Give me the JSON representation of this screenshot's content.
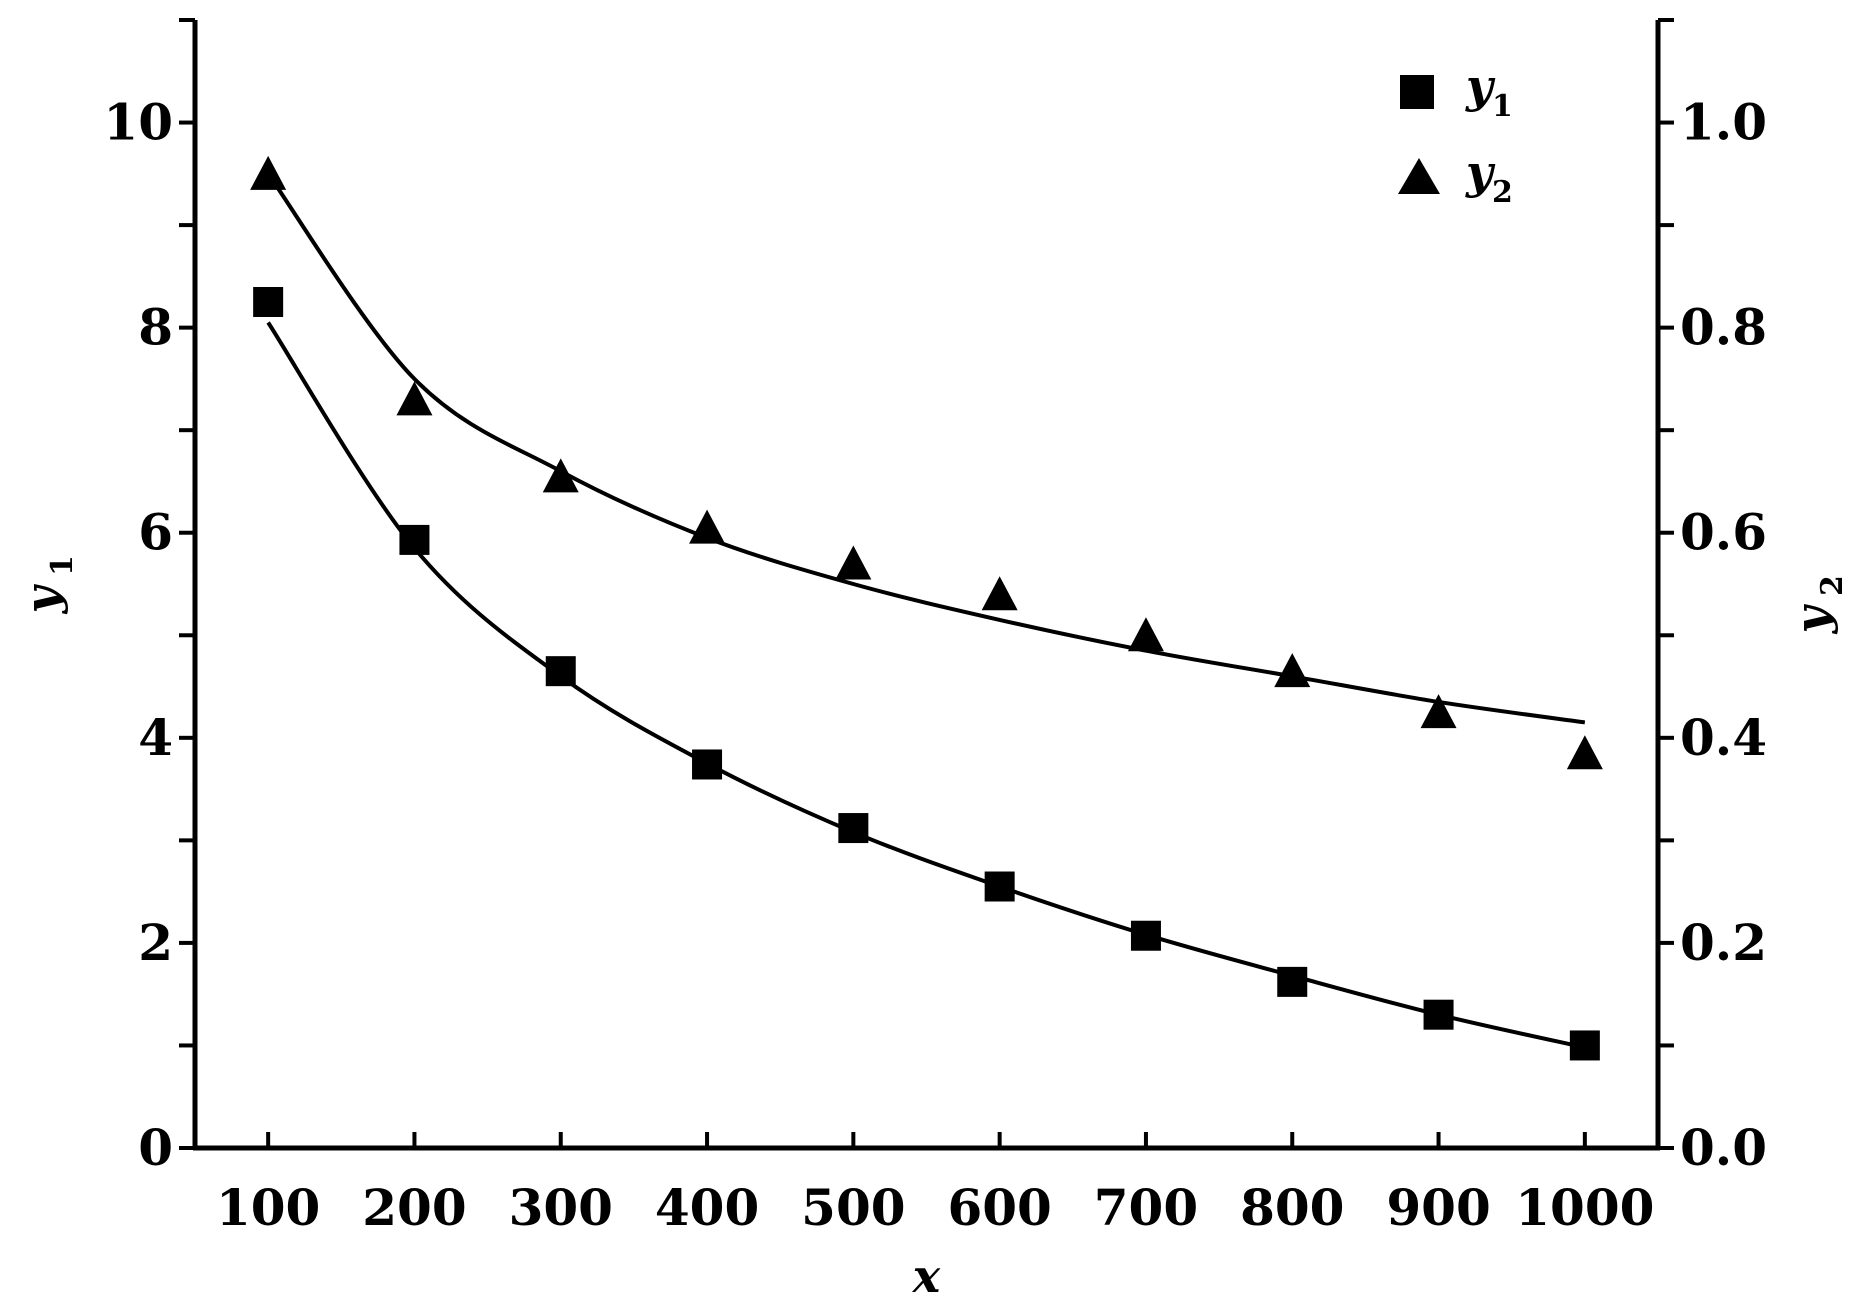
{
  "chart_data": {
    "type": "scatter",
    "x": [
      100,
      200,
      300,
      400,
      500,
      600,
      700,
      800,
      900,
      1000
    ],
    "xlabel": "x",
    "xlim": [
      50,
      1050
    ],
    "xticks": [
      100,
      200,
      300,
      400,
      500,
      600,
      700,
      800,
      900,
      1000
    ],
    "y_left": {
      "label": "y",
      "label_sub": "1",
      "lim": [
        0,
        11
      ],
      "ticks": [
        0,
        2,
        4,
        6,
        8,
        10
      ],
      "tick_labels": [
        "0",
        "2",
        "4",
        "6",
        "8",
        "10"
      ]
    },
    "y_right": {
      "label": "y",
      "label_sub": "2",
      "lim": [
        0,
        1.1
      ],
      "ticks": [
        0.0,
        0.2,
        0.4,
        0.6,
        0.8,
        1.0
      ],
      "tick_labels": [
        "0.0",
        "0.2",
        "0.4",
        "0.6",
        "0.8",
        "1.0"
      ]
    },
    "series": [
      {
        "name": "y1",
        "legend_label": "y",
        "legend_sub": "1",
        "axis": "left",
        "marker": "square",
        "values": [
          8.25,
          5.93,
          4.65,
          3.74,
          3.12,
          2.55,
          2.07,
          1.62,
          1.3,
          1.0
        ],
        "fit": [
          8.05,
          5.85,
          4.6,
          3.75,
          3.08,
          2.55,
          2.08,
          1.68,
          1.3,
          0.98
        ]
      },
      {
        "name": "y2",
        "legend_label": "y",
        "legend_sub": "2",
        "axis": "right",
        "marker": "triangle",
        "values": [
          0.95,
          0.73,
          0.655,
          0.605,
          0.57,
          0.54,
          0.5,
          0.465,
          0.425,
          0.385
        ],
        "fit": [
          0.95,
          0.75,
          0.66,
          0.595,
          0.55,
          0.515,
          0.485,
          0.46,
          0.435,
          0.415
        ]
      }
    ],
    "legend_position": "top-right",
    "grid": false
  }
}
